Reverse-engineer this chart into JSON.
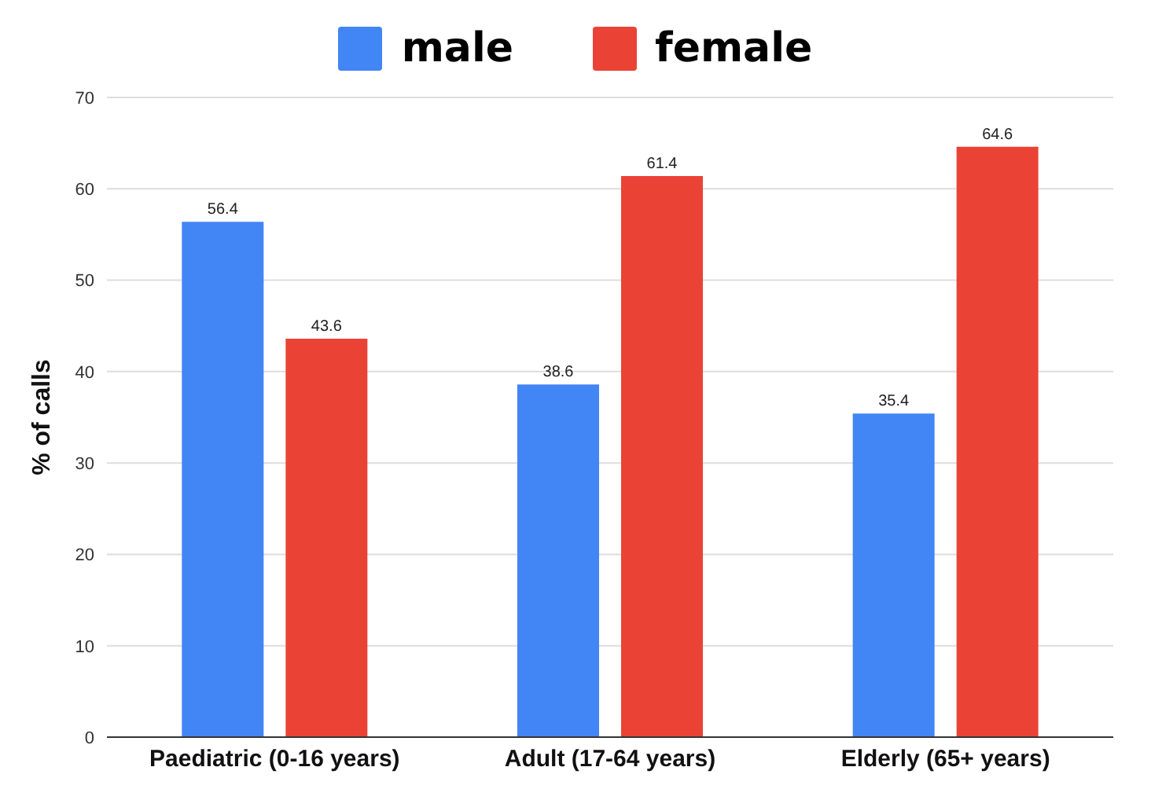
{
  "chart_data": {
    "type": "bar",
    "ylabel": "% of calls",
    "categories": [
      "Paediatric (0-16 years)",
      "Adult (17-64 years)",
      "Elderly (65+ years)"
    ],
    "series": [
      {
        "name": "male",
        "color": "#4285f4",
        "values": [
          56.4,
          38.6,
          35.4
        ]
      },
      {
        "name": "female",
        "color": "#ea4335",
        "values": [
          43.6,
          61.4,
          64.6
        ]
      }
    ],
    "ylim": [
      0,
      70
    ],
    "yticks": [
      0,
      10,
      20,
      30,
      40,
      50,
      60,
      70
    ],
    "grid": "y",
    "legend": "top",
    "data_labels": true
  }
}
